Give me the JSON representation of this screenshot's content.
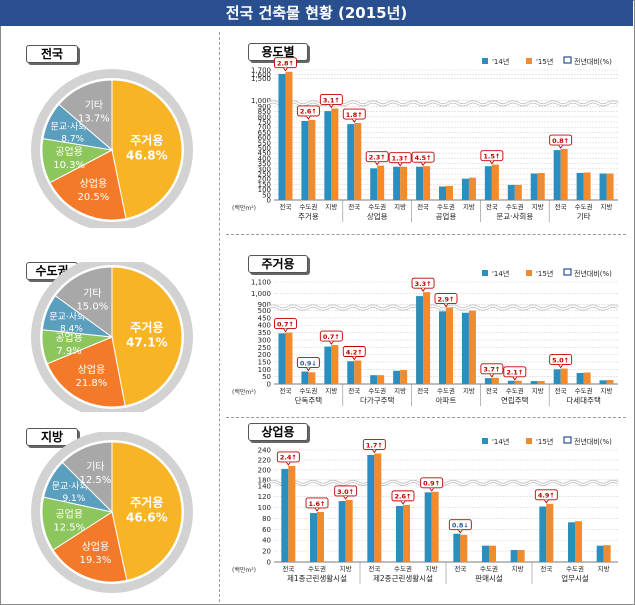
{
  "title": "전국 건축물 현황 (2015년)",
  "colors": {
    "title_bg": "#2a4f8f",
    "y2014": "#2a8fbf",
    "y2015": "#f28a2e",
    "housing": "#f9b426",
    "commercial": "#f47a29",
    "industrial": "#8cc65d",
    "culture": "#5b9fbf",
    "other": "#a8a8a8",
    "ring": "#d2d2d2",
    "callout": "#c00000"
  },
  "legend": {
    "y2014": "'14년",
    "y2015": "'15년",
    "change": "전년대비(%)"
  },
  "unit_label": "(백만m²)",
  "pies": [
    {
      "label": "전국",
      "slices": [
        {
          "name": "주거용",
          "value": "46.8%"
        },
        {
          "name": "상업용",
          "value": "20.5%"
        },
        {
          "name": "공업용",
          "value": "10.3%"
        },
        {
          "name": "문교·사회용",
          "value": "8.7%"
        },
        {
          "name": "기타",
          "value": "13.7%"
        }
      ]
    },
    {
      "label": "수도권",
      "slices": [
        {
          "name": "주거용",
          "value": "47.1%"
        },
        {
          "name": "상업용",
          "value": "21.8%"
        },
        {
          "name": "공업용",
          "value": "7.9%"
        },
        {
          "name": "문교·사회용",
          "value": "8.4%"
        },
        {
          "name": "기타",
          "value": "15.0%"
        }
      ]
    },
    {
      "label": "지방",
      "slices": [
        {
          "name": "주거용",
          "value": "46.6%"
        },
        {
          "name": "상업용",
          "value": "19.3%"
        },
        {
          "name": "공업용",
          "value": "12.5%"
        },
        {
          "name": "문교·사회용",
          "value": "9.1%"
        },
        {
          "name": "기타",
          "value": "12.5%"
        }
      ]
    }
  ],
  "chart_data": [
    {
      "type": "bar",
      "label": "용도별",
      "series_names": [
        "'14년",
        "'15년"
      ],
      "groups": [
        "주거용",
        "상업용",
        "공업용",
        "문교·사회용",
        "기타"
      ],
      "sub_categories": [
        "전국",
        "수도권",
        "지방"
      ],
      "values_2014": [
        1610,
        760,
        855,
        730,
        305,
        320,
        320,
        130,
        205,
        325,
        145,
        255,
        480,
        260,
        255
      ],
      "values_2015": [
        1660,
        770,
        880,
        740,
        330,
        320,
        325,
        135,
        215,
        340,
        145,
        260,
        490,
        265,
        255
      ],
      "changes": [
        "2.8↑",
        "2.6↑",
        "3.1↑",
        "1.8↑",
        "2.3↑",
        "1.3↑",
        "4.5↑",
        "",
        "",
        "1.5↑",
        "",
        "",
        "0.8↑",
        "",
        ""
      ],
      "y_ticks": [
        0,
        50,
        100,
        150,
        200,
        250,
        300,
        350,
        400,
        450,
        500,
        550,
        600,
        650,
        700,
        750,
        800,
        850,
        900,
        1000,
        1500,
        1600,
        1700
      ],
      "y_tick_labels": [
        "0",
        "50",
        "100",
        "150",
        "200",
        "250",
        "300",
        "350",
        "400",
        "450",
        "500",
        "550",
        "600",
        "650",
        "700",
        "750",
        "800",
        "850",
        "900",
        "1,000",
        "1,500",
        "1,600",
        "1,700"
      ],
      "axis_break": [
        900,
        1000
      ],
      "ylim": [
        0,
        1700
      ]
    },
    {
      "type": "bar",
      "label": "주거용",
      "series_names": [
        "'14년",
        "'15년"
      ],
      "groups": [
        "단독주택",
        "다가구주택",
        "아파트",
        "연립주택",
        "다세대주택"
      ],
      "sub_categories": [
        "전국",
        "수도권",
        "지방"
      ],
      "values_2014": [
        345,
        85,
        255,
        155,
        60,
        90,
        975,
        495,
        485,
        40,
        22,
        20,
        100,
        75,
        25
      ],
      "values_2015": [
        350,
        80,
        265,
        160,
        60,
        95,
        1010,
        510,
        500,
        42,
        22,
        20,
        105,
        78,
        27
      ],
      "changes": [
        "0.7↑",
        "0.9↓",
        "0.7↑",
        "4.2↑",
        "",
        "",
        "3.3↑",
        "2.9↑",
        "",
        "3.7↑",
        "2.1↑",
        "",
        "5.0↑",
        "",
        ""
      ],
      "y_ticks": [
        0,
        50,
        100,
        150,
        200,
        250,
        300,
        350,
        400,
        450,
        500,
        900,
        1000,
        1100
      ],
      "y_tick_labels": [
        "0",
        "50",
        "100",
        "150",
        "200",
        "250",
        "300",
        "350",
        "400",
        "450",
        "500",
        "900",
        "1,000",
        "1,100"
      ],
      "axis_break": [
        500,
        900
      ],
      "ylim": [
        0,
        1100
      ]
    },
    {
      "type": "bar",
      "label": "상업용",
      "series_names": [
        "'14년",
        "'15년"
      ],
      "groups": [
        "제1종근린생활시설",
        "제2종근린생활시설",
        "판매시설",
        "업무시설"
      ],
      "sub_categories": [
        "전국",
        "수도권",
        "지방"
      ],
      "values_2014": [
        202,
        90,
        112,
        230,
        103,
        128,
        52,
        30,
        22,
        102,
        73,
        30
      ],
      "values_2015": [
        208,
        92,
        114,
        233,
        105,
        129,
        50,
        30,
        22,
        107,
        75,
        31
      ],
      "changes": [
        "2.4↑",
        "1.6↑",
        "3.0↑",
        "1.7↑",
        "2.6↑",
        "0.9↑",
        "0.8↓",
        "",
        "",
        "4.9↑",
        "",
        ""
      ],
      "y_ticks": [
        0,
        20,
        40,
        60,
        80,
        100,
        120,
        140,
        180,
        200,
        220,
        240
      ],
      "y_tick_labels": [
        "0",
        "20",
        "40",
        "60",
        "80",
        "100",
        "120",
        "140",
        "180",
        "200",
        "220",
        "240"
      ],
      "axis_break": [
        140,
        180
      ],
      "ylim": [
        0,
        240
      ]
    }
  ]
}
